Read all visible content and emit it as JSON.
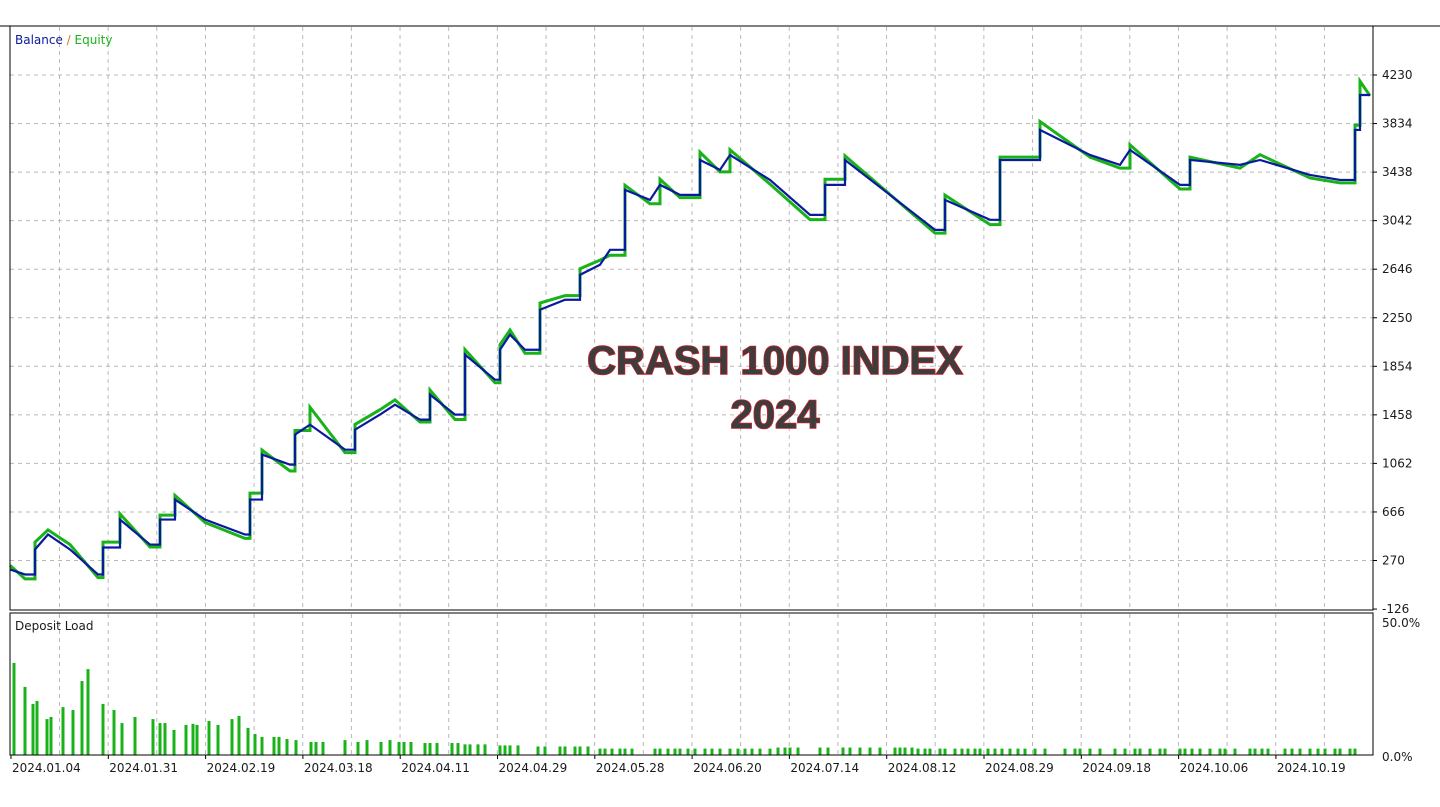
{
  "chart_data": [
    {
      "type": "line",
      "legend": {
        "balance": "Balance",
        "separator": " / ",
        "equity": "Equity",
        "placement": "top-left"
      },
      "colors": {
        "balance": "#0a1aa0",
        "equity": "#19b219"
      },
      "overlay_title": [
        "CRASH 1000 INDEX",
        "2024"
      ],
      "overlay_colors": {
        "fill": "#3d3d3d",
        "outline": "#c8202a"
      },
      "grid": true,
      "ylim": [
        -126,
        4230
      ],
      "y_ticks": [
        "4230",
        "3834",
        "3438",
        "3042",
        "2646",
        "2250",
        "1854",
        "1458",
        "1062",
        "666",
        "270",
        "-126"
      ],
      "x_ticks": [
        "2024.01.04",
        "2024.01.31",
        "2024.02.19",
        "2024.03.18",
        "2024.04.11",
        "2024.04.29",
        "2024.05.28",
        "2024.06.20",
        "2024.07.14",
        "2024.08.12",
        "2024.08.29",
        "2024.09.18",
        "2024.10.06",
        "2024.10.19"
      ],
      "series": [
        {
          "name": "Balance",
          "values": [
            197,
            156,
            360,
            482,
            360,
            156,
            376,
            604,
            400,
            604,
            767,
            604,
            482,
            767,
            1134,
            1052,
            1297,
            1378,
            1174,
            1337,
            1460,
            1541,
            1419,
            1623,
            1460,
            1949,
            1745,
            1989,
            2112,
            1989,
            2315,
            2397,
            2600,
            2682,
            2804,
            3293,
            3211,
            3334,
            3252,
            3537,
            3456,
            3578,
            3374,
            3089,
            3334,
            3537,
            2967,
            3211,
            3049,
            3537,
            3782,
            3578,
            3497,
            3619,
            3334,
            3537,
            3497,
            3537,
            3415,
            3374,
            3782,
            4067,
            4067
          ]
        },
        {
          "name": "Equity",
          "values": [
            230,
            120,
            420,
            520,
            400,
            130,
            420,
            650,
            380,
            640,
            800,
            580,
            450,
            820,
            1170,
            1000,
            1330,
            1520,
            1150,
            1380,
            1500,
            1580,
            1400,
            1660,
            1420,
            1990,
            1720,
            2030,
            2150,
            1960,
            2370,
            2430,
            2650,
            2720,
            2760,
            3330,
            3180,
            3380,
            3230,
            3600,
            3440,
            3620,
            3340,
            3050,
            3380,
            3570,
            2940,
            3250,
            3010,
            3560,
            3850,
            3560,
            3470,
            3660,
            3300,
            3560,
            3470,
            3580,
            3390,
            3350,
            3820,
            4180,
            4060
          ]
        }
      ]
    },
    {
      "type": "bar",
      "label": "Deposit Load",
      "color": "#19b219",
      "ylim": [
        0,
        50
      ],
      "y_ticks": [
        "50.0%",
        "0.0%"
      ],
      "values": [
        34.6,
        25.6,
        19.2,
        20.3,
        13.5,
        14.3,
        18,
        16.9,
        27.8,
        32.3,
        19.2,
        16.9,
        12,
        14.3,
        13.5,
        12,
        12,
        9.4,
        11.3,
        11.7,
        11.3,
        12.8,
        11.3,
        13.5,
        14.7,
        10.2,
        7.9,
        6.8,
        6.8,
        6.8,
        6,
        5.6,
        4.9,
        4.9,
        4.9,
        5.6,
        4.9,
        5.6,
        4.9,
        5.6,
        4.9,
        4.9,
        4.9,
        4.5,
        4.5,
        4.5,
        4.5,
        4.5,
        4,
        4,
        4,
        4,
        3.6,
        3.6,
        3.6,
        3.6,
        3.2,
        3.2,
        3.2,
        3.2,
        3.2,
        3.2,
        3.2,
        2.4,
        2.4,
        2.4,
        2.4,
        2.4,
        2.4,
        2.4,
        2.4,
        2.4,
        2.4,
        2.4,
        2.4,
        2.4,
        2.4,
        2.4,
        2.4,
        2.4,
        2.4,
        2.4,
        2.4,
        2.4,
        2.4,
        2.8,
        2.8,
        2.8,
        2.8,
        2.8,
        2.8,
        2.8,
        2.8,
        2.8,
        2.8,
        2.8,
        2.8,
        2.8,
        2.8,
        2.8,
        2.4,
        2.4,
        2.4,
        2.4,
        2.4,
        2.4,
        2.4,
        2.4,
        2.4,
        2.4,
        2.4,
        2.4,
        2.4,
        2.4,
        2.4,
        2.4,
        2.4,
        2.4,
        2.4,
        2.4,
        2.4,
        2.4,
        2.4,
        2.4,
        2.4,
        2.4,
        2.4,
        2.4,
        2.4,
        2.4,
        2.4,
        2.4,
        2.4,
        2.4,
        2.4,
        2.4,
        2.4,
        2.4,
        2.4,
        2.4,
        2.4,
        2.4,
        2.4,
        2.4,
        2.4,
        2.4,
        2.4,
        2.4,
        2.4,
        2.4,
        2.4,
        2.4
      ]
    }
  ]
}
